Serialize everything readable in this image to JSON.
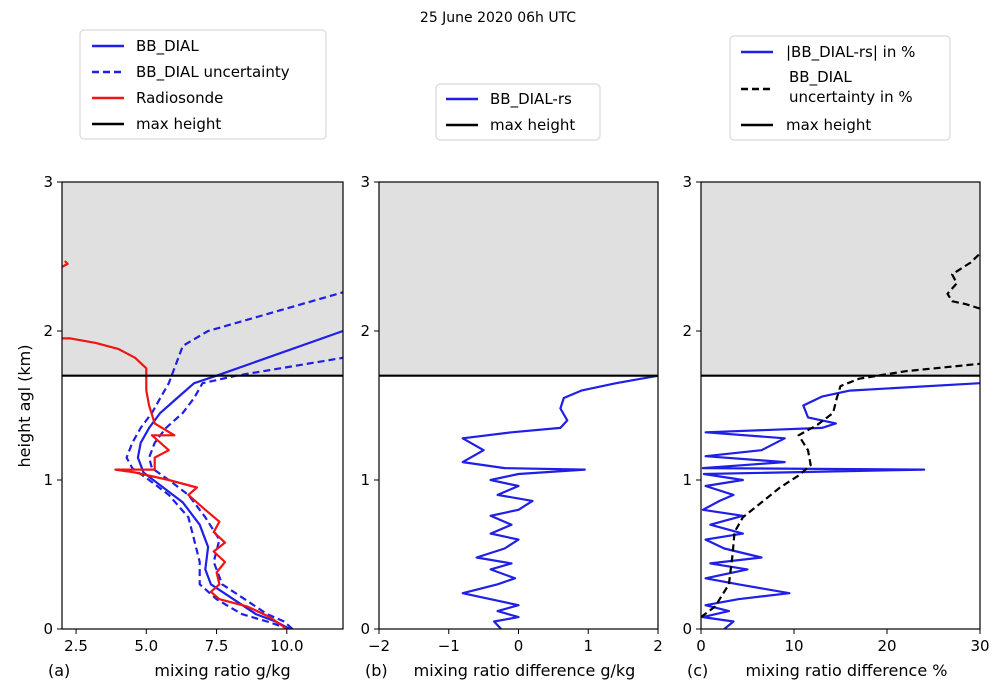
{
  "figure": {
    "title": "25 June 2020 06h UTC"
  },
  "colors": {
    "blue": "#1f1fe6",
    "red": "#f01414",
    "black": "#000000",
    "shade": "#e0e0e0"
  },
  "chart_data": [
    {
      "type": "line",
      "panel_label": "(a)",
      "xlabel": "mixing ratio g/kg",
      "ylabel": "height agl (km)",
      "xlim": [
        2,
        12
      ],
      "ylim": [
        0,
        3
      ],
      "xticks": [
        2.5,
        5.0,
        7.5,
        10.0
      ],
      "xtick_labels": [
        "2.5",
        "5.0",
        "7.5",
        "10.0"
      ],
      "yticks": [
        0,
        1,
        2,
        3
      ],
      "ytick_labels": [
        "0",
        "1",
        "2",
        "3"
      ],
      "shaded_above": 1.7,
      "legend": {
        "placement": "above-panel",
        "entries": [
          "BB_DIAL",
          "BB_DIAL uncertainty",
          "Radiosonde",
          "max height"
        ]
      },
      "series": [
        {
          "name": "BB_DIAL",
          "color": "#1f1fe6",
          "dash": "solid",
          "points": [
            [
              10.1,
              0.0
            ],
            [
              9.6,
              0.05
            ],
            [
              8.9,
              0.1
            ],
            [
              8.1,
              0.2
            ],
            [
              7.3,
              0.3
            ],
            [
              7.1,
              0.4
            ],
            [
              7.2,
              0.55
            ],
            [
              6.9,
              0.7
            ],
            [
              6.3,
              0.85
            ],
            [
              5.6,
              0.95
            ],
            [
              4.9,
              1.05
            ],
            [
              4.7,
              1.15
            ],
            [
              4.8,
              1.25
            ],
            [
              5.1,
              1.35
            ],
            [
              5.5,
              1.45
            ],
            [
              6.1,
              1.55
            ],
            [
              6.7,
              1.65
            ],
            [
              7.5,
              1.7
            ],
            [
              12.0,
              2.0
            ]
          ]
        },
        {
          "name": "BB_DIAL uncertainty",
          "color": "#1f1fe6",
          "dash": "dashed",
          "points": [
            [
              10.1,
              0.0
            ],
            [
              9.3,
              0.05
            ],
            [
              8.4,
              0.1
            ],
            [
              7.5,
              0.2
            ],
            [
              6.9,
              0.3
            ],
            [
              6.9,
              0.45
            ],
            [
              6.7,
              0.6
            ],
            [
              6.5,
              0.75
            ],
            [
              5.8,
              0.9
            ],
            [
              5.1,
              1.0
            ],
            [
              4.5,
              1.08
            ],
            [
              4.3,
              1.15
            ],
            [
              4.5,
              1.25
            ],
            [
              4.8,
              1.35
            ],
            [
              5.2,
              1.45
            ],
            [
              5.5,
              1.55
            ],
            [
              5.8,
              1.65
            ],
            [
              6.0,
              1.75
            ],
            [
              6.3,
              1.9
            ],
            [
              7.2,
              2.0
            ],
            [
              12.0,
              2.26
            ]
          ]
        },
        {
          "name": "",
          "color": "#1f1fe6",
          "dash": "dashed",
          "points": [
            [
              10.2,
              0.0
            ],
            [
              9.9,
              0.05
            ],
            [
              9.3,
              0.1
            ],
            [
              8.5,
              0.2
            ],
            [
              7.7,
              0.3
            ],
            [
              7.4,
              0.45
            ],
            [
              7.6,
              0.6
            ],
            [
              7.1,
              0.75
            ],
            [
              6.5,
              0.9
            ],
            [
              5.8,
              1.0
            ],
            [
              5.2,
              1.08
            ],
            [
              5.1,
              1.15
            ],
            [
              5.3,
              1.25
            ],
            [
              5.7,
              1.35
            ],
            [
              6.3,
              1.45
            ],
            [
              6.7,
              1.55
            ],
            [
              7.0,
              1.65
            ],
            [
              8.2,
              1.7
            ],
            [
              12.0,
              1.82
            ]
          ]
        },
        {
          "name": "Radiosonde",
          "color": "#f01414",
          "dash": "solid",
          "points": [
            [
              10.0,
              0.0
            ],
            [
              9.4,
              0.08
            ],
            [
              8.6,
              0.15
            ],
            [
              7.6,
              0.2
            ],
            [
              7.3,
              0.25
            ],
            [
              7.6,
              0.3
            ],
            [
              7.5,
              0.38
            ],
            [
              7.8,
              0.45
            ],
            [
              7.4,
              0.52
            ],
            [
              7.8,
              0.58
            ],
            [
              7.4,
              0.65
            ],
            [
              7.6,
              0.72
            ],
            [
              7.1,
              0.8
            ],
            [
              6.5,
              0.9
            ],
            [
              6.8,
              0.95
            ],
            [
              5.8,
              1.0
            ],
            [
              4.6,
              1.05
            ],
            [
              3.9,
              1.07
            ],
            [
              5.3,
              1.07
            ],
            [
              5.3,
              1.15
            ],
            [
              5.8,
              1.2
            ],
            [
              5.2,
              1.3
            ],
            [
              6.0,
              1.3
            ],
            [
              5.3,
              1.38
            ],
            [
              5.1,
              1.5
            ],
            [
              5.0,
              1.6
            ],
            [
              5.0,
              1.75
            ],
            [
              4.6,
              1.82
            ],
            [
              4.0,
              1.88
            ],
            [
              3.2,
              1.92
            ],
            [
              2.3,
              1.95
            ],
            [
              2.0,
              1.95
            ]
          ]
        },
        {
          "name": "",
          "color": "#f01414",
          "dash": "solid",
          "points": [
            [
              2.0,
              2.43
            ],
            [
              2.2,
              2.45
            ],
            [
              2.1,
              2.47
            ]
          ]
        },
        {
          "name": "max height",
          "color": "#000000",
          "dash": "solid",
          "points": [
            [
              2,
              1.7
            ],
            [
              12,
              1.7
            ]
          ]
        }
      ]
    },
    {
      "type": "line",
      "panel_label": "(b)",
      "xlabel": "mixing ratio difference g/kg",
      "ylabel": "",
      "xlim": [
        -2,
        2
      ],
      "ylim": [
        0,
        3
      ],
      "xticks": [
        -2,
        -1,
        0,
        1,
        2
      ],
      "xtick_labels": [
        "−2",
        "−1",
        "0",
        "1",
        "2"
      ],
      "yticks": [
        0,
        1,
        2,
        3
      ],
      "ytick_labels": [
        "0",
        "1",
        "2",
        "3"
      ],
      "shaded_above": 1.7,
      "legend": {
        "placement": "above-panel",
        "entries": [
          "BB_DIAL-rs",
          "max height"
        ]
      },
      "series": [
        {
          "name": "BB_DIAL-rs",
          "color": "#1f1fe6",
          "dash": "solid",
          "points": [
            [
              -0.25,
              0.0
            ],
            [
              -0.35,
              0.05
            ],
            [
              0.0,
              0.08
            ],
            [
              -0.3,
              0.12
            ],
            [
              0.0,
              0.16
            ],
            [
              -0.4,
              0.2
            ],
            [
              -0.8,
              0.24
            ],
            [
              -0.3,
              0.3
            ],
            [
              -0.05,
              0.34
            ],
            [
              -0.4,
              0.4
            ],
            [
              -0.1,
              0.44
            ],
            [
              -0.6,
              0.48
            ],
            [
              -0.2,
              0.54
            ],
            [
              0.0,
              0.6
            ],
            [
              -0.4,
              0.64
            ],
            [
              -0.1,
              0.7
            ],
            [
              -0.4,
              0.76
            ],
            [
              0.0,
              0.8
            ],
            [
              0.2,
              0.86
            ],
            [
              -0.3,
              0.9
            ],
            [
              0.0,
              0.96
            ],
            [
              -0.4,
              1.0
            ],
            [
              0.0,
              1.04
            ],
            [
              0.95,
              1.07
            ],
            [
              -0.2,
              1.08
            ],
            [
              -0.8,
              1.12
            ],
            [
              -0.5,
              1.2
            ],
            [
              -0.8,
              1.28
            ],
            [
              -0.1,
              1.32
            ],
            [
              0.6,
              1.35
            ],
            [
              0.7,
              1.4
            ],
            [
              0.6,
              1.48
            ],
            [
              0.65,
              1.55
            ],
            [
              0.9,
              1.6
            ],
            [
              1.4,
              1.65
            ],
            [
              2.0,
              1.7
            ]
          ]
        },
        {
          "name": "max height",
          "color": "#000000",
          "dash": "solid",
          "points": [
            [
              -2,
              1.7
            ],
            [
              2,
              1.7
            ]
          ]
        }
      ]
    },
    {
      "type": "line",
      "panel_label": "(c)",
      "xlabel": "mixing ratio difference %",
      "ylabel": "",
      "xlim": [
        0,
        30
      ],
      "ylim": [
        0,
        3
      ],
      "xticks": [
        0,
        10,
        20,
        30
      ],
      "xtick_labels": [
        "0",
        "10",
        "20",
        "30"
      ],
      "yticks": [
        0,
        1,
        2,
        3
      ],
      "ytick_labels": [
        "0",
        "1",
        "2",
        "3"
      ],
      "shaded_above": 1.7,
      "legend": {
        "placement": "above-panel",
        "entries": [
          "|BB_DIAL-rs| in %",
          "BB_DIAL uncertainty in %",
          "max height"
        ]
      },
      "series": [
        {
          "name": "|BB_DIAL-rs| in %",
          "color": "#1f1fe6",
          "dash": "solid",
          "points": [
            [
              2.5,
              0.0
            ],
            [
              3.5,
              0.05
            ],
            [
              0.2,
              0.08
            ],
            [
              3.0,
              0.12
            ],
            [
              0.5,
              0.16
            ],
            [
              4.0,
              0.2
            ],
            [
              9.5,
              0.24
            ],
            [
              4.0,
              0.3
            ],
            [
              0.5,
              0.34
            ],
            [
              5.0,
              0.4
            ],
            [
              1.0,
              0.44
            ],
            [
              6.5,
              0.48
            ],
            [
              2.5,
              0.54
            ],
            [
              0.5,
              0.6
            ],
            [
              4.5,
              0.64
            ],
            [
              1.0,
              0.7
            ],
            [
              4.5,
              0.76
            ],
            [
              0.2,
              0.8
            ],
            [
              2.0,
              0.86
            ],
            [
              3.5,
              0.9
            ],
            [
              0.5,
              0.96
            ],
            [
              4.5,
              1.0
            ],
            [
              0.3,
              1.04
            ],
            [
              24.0,
              1.07
            ],
            [
              0.2,
              1.08
            ],
            [
              9.0,
              1.12
            ],
            [
              0.5,
              1.16
            ],
            [
              6.5,
              1.2
            ],
            [
              9.0,
              1.28
            ],
            [
              0.5,
              1.32
            ],
            [
              13.0,
              1.35
            ],
            [
              14.5,
              1.38
            ],
            [
              11.5,
              1.42
            ],
            [
              11.0,
              1.5
            ],
            [
              13.0,
              1.56
            ],
            [
              16.0,
              1.6
            ],
            [
              30.0,
              1.65
            ]
          ]
        },
        {
          "name": "BB_DIAL uncertainty in %",
          "color": "#000000",
          "dash": "dashed",
          "points": [
            [
              0.0,
              0.08
            ],
            [
              1.5,
              0.15
            ],
            [
              3.0,
              0.3
            ],
            [
              3.4,
              0.5
            ],
            [
              3.6,
              0.65
            ],
            [
              4.5,
              0.75
            ],
            [
              6.5,
              0.85
            ],
            [
              8.5,
              0.95
            ],
            [
              10.5,
              1.03
            ],
            [
              11.8,
              1.1
            ],
            [
              11.5,
              1.2
            ],
            [
              10.5,
              1.3
            ],
            [
              12.5,
              1.37
            ],
            [
              14.2,
              1.45
            ],
            [
              14.6,
              1.55
            ],
            [
              15.0,
              1.63
            ],
            [
              17.0,
              1.68
            ],
            [
              22.0,
              1.73
            ],
            [
              30.0,
              1.78
            ]
          ]
        },
        {
          "name": "",
          "color": "#000000",
          "dash": "dashed",
          "points": [
            [
              30.0,
              2.15
            ],
            [
              28.5,
              2.18
            ],
            [
              27.0,
              2.2
            ],
            [
              26.5,
              2.25
            ],
            [
              27.5,
              2.32
            ],
            [
              27.0,
              2.38
            ],
            [
              28.0,
              2.42
            ],
            [
              29.0,
              2.46
            ],
            [
              30.0,
              2.52
            ]
          ]
        },
        {
          "name": "max height",
          "color": "#000000",
          "dash": "solid",
          "points": [
            [
              0,
              1.7
            ],
            [
              30,
              1.7
            ]
          ]
        }
      ]
    }
  ]
}
